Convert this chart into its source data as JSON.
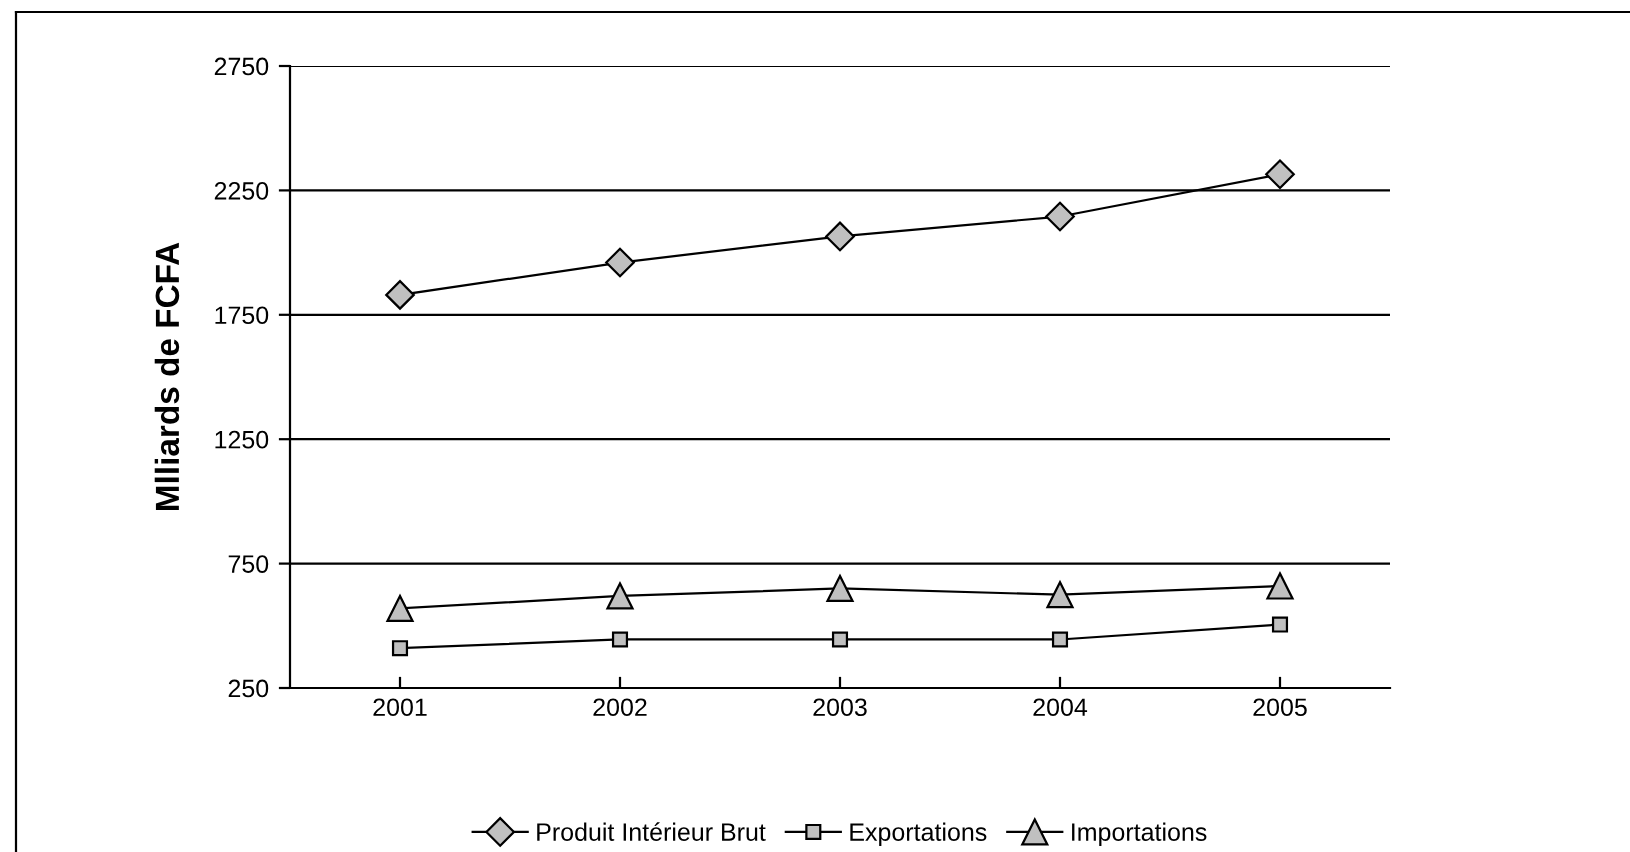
{
  "chart_data": {
    "type": "line",
    "ylabel": "Mlliards de FCFA",
    "categories": [
      "2001",
      "2002",
      "2003",
      "2004",
      "2005"
    ],
    "series": [
      {
        "name": "Produit Intérieur Brut",
        "color": "#000000",
        "marker": "diamond",
        "values": [
          1830,
          1960,
          2065,
          2145,
          2315
        ]
      },
      {
        "name": "Exportations",
        "color": "#000000",
        "marker": "square",
        "values": [
          410,
          445,
          445,
          445,
          505
        ]
      },
      {
        "name": "Importations",
        "color": "#000000",
        "marker": "triangle",
        "values": [
          570,
          620,
          650,
          625,
          660
        ]
      }
    ],
    "ylim": [
      250,
      2750
    ],
    "yticks": [
      250,
      750,
      1250,
      1750,
      2250,
      2750
    ],
    "grid": "y",
    "legend": "bottom",
    "line_style": "solid"
  }
}
